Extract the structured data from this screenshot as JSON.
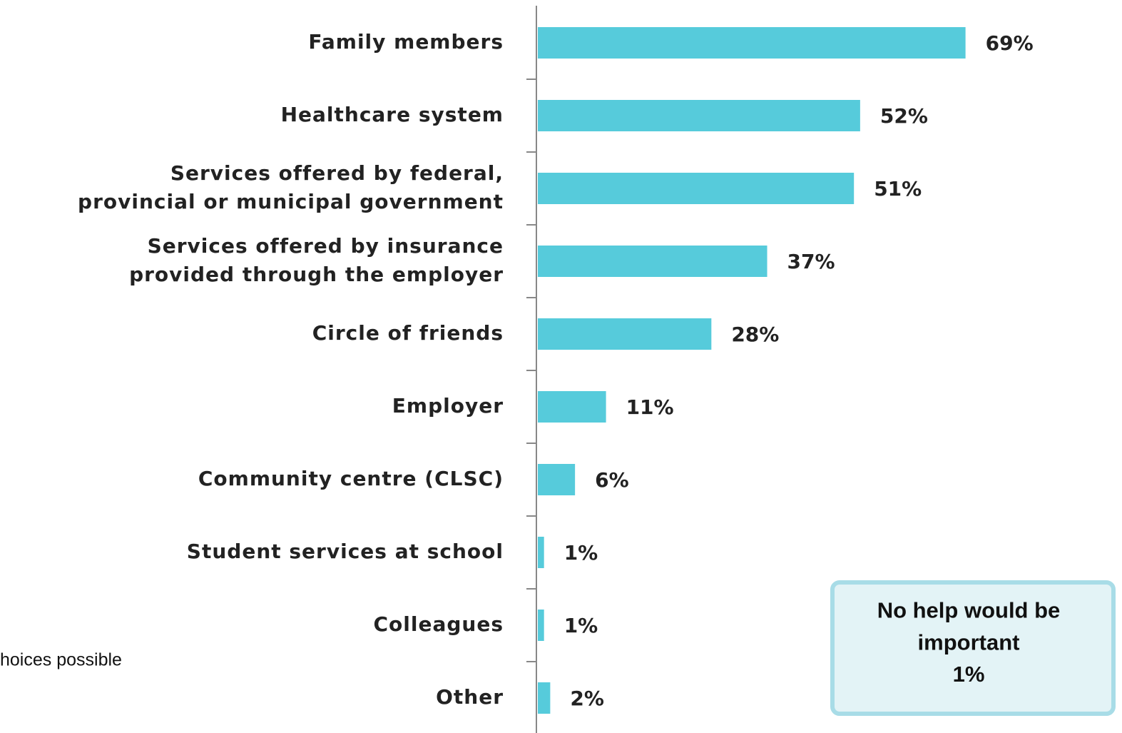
{
  "chart_data": {
    "type": "bar",
    "orientation": "horizontal",
    "categories": [
      "Family members",
      "Healthcare system",
      "Services offered by federal,\nprovincial or municipal government",
      "Services offered by insurance\nprovided through the employer",
      "Circle of friends",
      "Employer",
      "Community centre (CLSC)",
      "Student services at school",
      "Colleagues",
      "Other"
    ],
    "values": [
      69,
      52,
      51,
      37,
      28,
      11,
      6,
      1,
      1,
      2
    ],
    "value_labels": [
      "69%",
      "52%",
      "51%",
      "37%",
      "28%",
      "11%",
      "6%",
      "1%",
      "1%",
      "2%"
    ],
    "color": "#56cbdb",
    "xlim": [
      0,
      100
    ],
    "note": "hoices possible",
    "annotation": {
      "text": "No help would be\nimportant",
      "value": 1,
      "value_label": "1%"
    }
  }
}
